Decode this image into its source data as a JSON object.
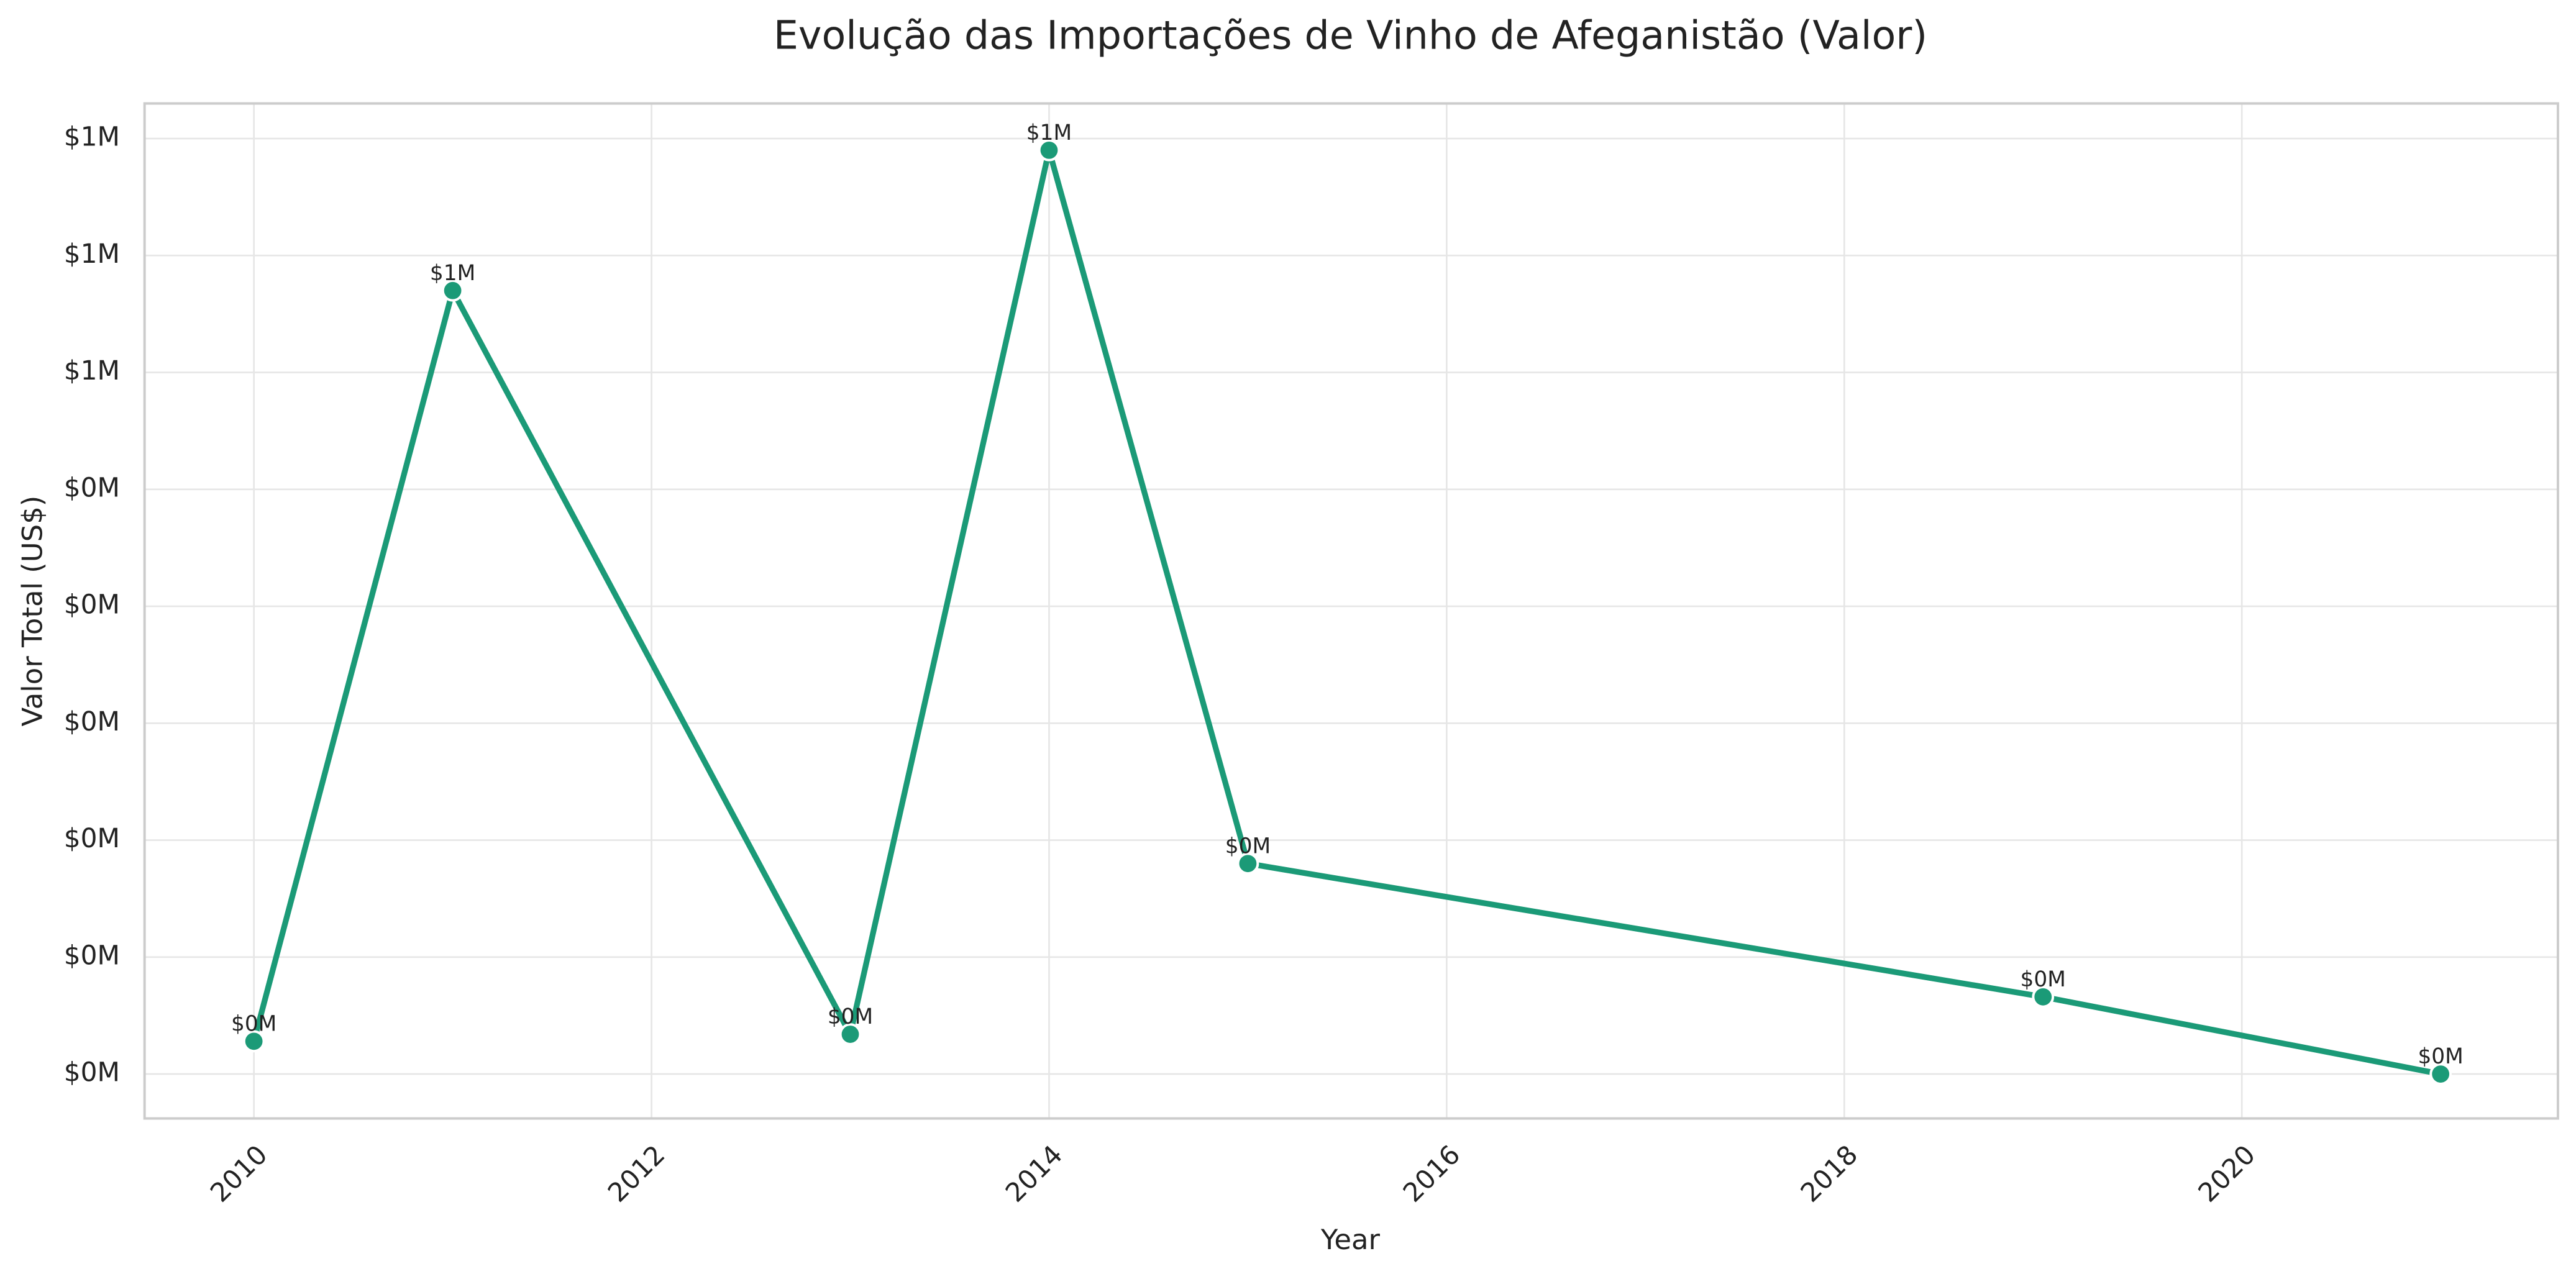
{
  "chart_data": {
    "type": "line",
    "title": "Evolução das Importações de Vinho de Afeganistão (Valor)",
    "x_label": "Year",
    "y_label": "Valor Total (US$)",
    "x": [
      2010,
      2011,
      2013,
      2014,
      2015,
      2019,
      2021
    ],
    "series": [
      {
        "name": "Valor",
        "color": "#1b9a77",
        "values": [
          28000,
          670000,
          34000,
          790000,
          180000,
          66000,
          0
        ],
        "value_labels": [
          "$0M",
          "$1M",
          "$0M",
          "$1M",
          "$0M",
          "$0M",
          "$0M"
        ]
      }
    ],
    "xlim": [
      2009.45,
      2021.59
    ],
    "xticks": [
      2010,
      2012,
      2014,
      2016,
      2018,
      2020
    ],
    "ylim": [
      -38000,
      830000
    ],
    "yticks": [
      {
        "value": 0,
        "label": "$0M"
      },
      {
        "value": 100000,
        "label": "$0M"
      },
      {
        "value": 200000,
        "label": "$0M"
      },
      {
        "value": 300000,
        "label": "$0M"
      },
      {
        "value": 400000,
        "label": "$0M"
      },
      {
        "value": 500000,
        "label": "$0M"
      },
      {
        "value": 600000,
        "label": "$1M"
      },
      {
        "value": 700000,
        "label": "$1M"
      },
      {
        "value": 800000,
        "label": "$1M"
      }
    ],
    "grid": true
  }
}
